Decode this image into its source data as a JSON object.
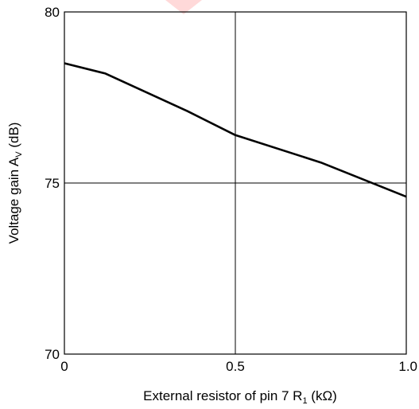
{
  "chart_data": {
    "type": "line",
    "xlabel": {
      "pre": "External resistor of pin 7 R",
      "sub": "1",
      "post": " (kΩ)"
    },
    "ylabel": {
      "pre": "Voltage gain A",
      "sub": "V",
      "post": " (dB)"
    },
    "xlim": [
      0,
      1.0
    ],
    "ylim": [
      70,
      80
    ],
    "x_ticks": [
      {
        "value": 0,
        "label": "0"
      },
      {
        "value": 0.5,
        "label": "0.5"
      },
      {
        "value": 1.0,
        "label": "1.0"
      }
    ],
    "y_ticks": [
      {
        "value": 70,
        "label": "70"
      },
      {
        "value": 75,
        "label": "75"
      },
      {
        "value": 80,
        "label": "80"
      }
    ],
    "grid": {
      "x": [
        0.5
      ],
      "y": [
        75
      ]
    },
    "series": [
      {
        "x": [
          0,
          0.12,
          0.36,
          0.5,
          0.75,
          1.0
        ],
        "y": [
          78.5,
          78.2,
          77.1,
          76.4,
          75.6,
          74.6
        ]
      }
    ],
    "colors": {
      "line": "#000000",
      "grid": "#000000",
      "frame": "#000000"
    }
  }
}
